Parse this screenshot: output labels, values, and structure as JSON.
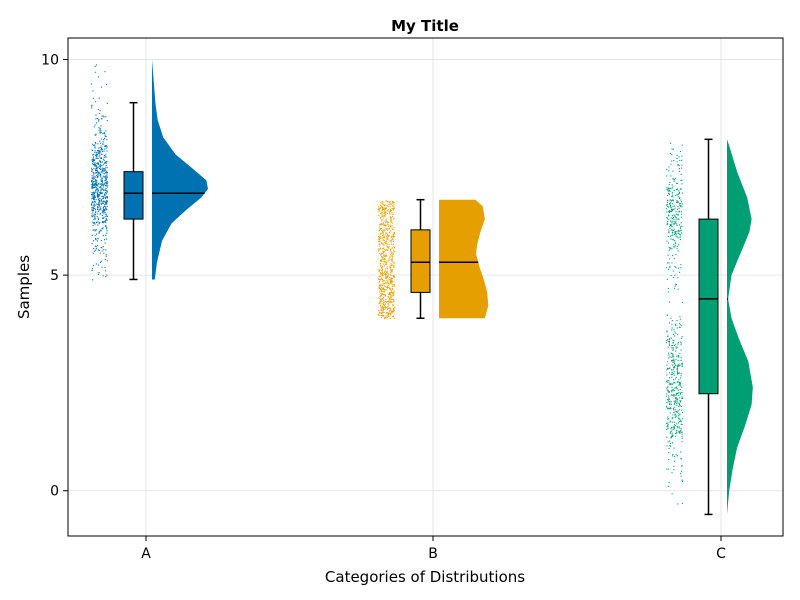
{
  "chart_data": {
    "type": "raincloud",
    "title": "My Title",
    "xlabel": "Categories of Distributions",
    "ylabel": "Samples",
    "categories": [
      "A",
      "B",
      "C"
    ],
    "ylim": [
      -1.05,
      10.5
    ],
    "yticks": [
      0,
      5,
      10
    ],
    "grid": true,
    "colors": [
      "#0072b2",
      "#e69f00",
      "#009e73"
    ],
    "series": [
      {
        "category": "A",
        "color": "#0072b2",
        "box": {
          "whisker_low": 4.9,
          "q1": 6.3,
          "median": 6.9,
          "q3": 7.4,
          "whisker_high": 9.0
        },
        "range": [
          4.9,
          10.0
        ],
        "density": [
          [
            4.9,
            0.05
          ],
          [
            5.3,
            0.09
          ],
          [
            5.8,
            0.18
          ],
          [
            6.2,
            0.35
          ],
          [
            6.5,
            0.6
          ],
          [
            6.8,
            0.88
          ],
          [
            7.0,
            1.0
          ],
          [
            7.2,
            0.97
          ],
          [
            7.5,
            0.7
          ],
          [
            7.8,
            0.42
          ],
          [
            8.2,
            0.2
          ],
          [
            8.6,
            0.1
          ],
          [
            9.0,
            0.06
          ],
          [
            9.5,
            0.03
          ],
          [
            10.0,
            0.0
          ]
        ]
      },
      {
        "category": "B",
        "color": "#e69f00",
        "box": {
          "whisker_low": 4.0,
          "q1": 4.6,
          "median": 5.3,
          "q3": 6.05,
          "whisker_high": 6.75
        },
        "range": [
          4.0,
          6.75
        ],
        "density": [
          [
            4.0,
            0.82
          ],
          [
            4.3,
            0.88
          ],
          [
            4.6,
            0.86
          ],
          [
            4.9,
            0.8
          ],
          [
            5.2,
            0.72
          ],
          [
            5.5,
            0.66
          ],
          [
            5.7,
            0.68
          ],
          [
            6.0,
            0.74
          ],
          [
            6.3,
            0.82
          ],
          [
            6.6,
            0.78
          ],
          [
            6.75,
            0.65
          ]
        ]
      },
      {
        "category": "C",
        "color": "#009e73",
        "box": {
          "whisker_low": -0.55,
          "q1": 2.25,
          "median": 4.45,
          "q3": 6.3,
          "whisker_high": 8.15
        },
        "range": [
          -0.55,
          8.15
        ],
        "density": [
          [
            -0.55,
            0.0
          ],
          [
            0.0,
            0.04
          ],
          [
            0.5,
            0.1
          ],
          [
            1.0,
            0.18
          ],
          [
            1.5,
            0.32
          ],
          [
            2.0,
            0.44
          ],
          [
            2.4,
            0.46
          ],
          [
            3.0,
            0.38
          ],
          [
            3.5,
            0.22
          ],
          [
            4.0,
            0.08
          ],
          [
            4.45,
            0.02
          ],
          [
            5.0,
            0.08
          ],
          [
            5.5,
            0.24
          ],
          [
            6.0,
            0.4
          ],
          [
            6.3,
            0.44
          ],
          [
            6.8,
            0.36
          ],
          [
            7.4,
            0.18
          ],
          [
            8.0,
            0.04
          ],
          [
            8.15,
            0.0
          ]
        ]
      }
    ]
  }
}
